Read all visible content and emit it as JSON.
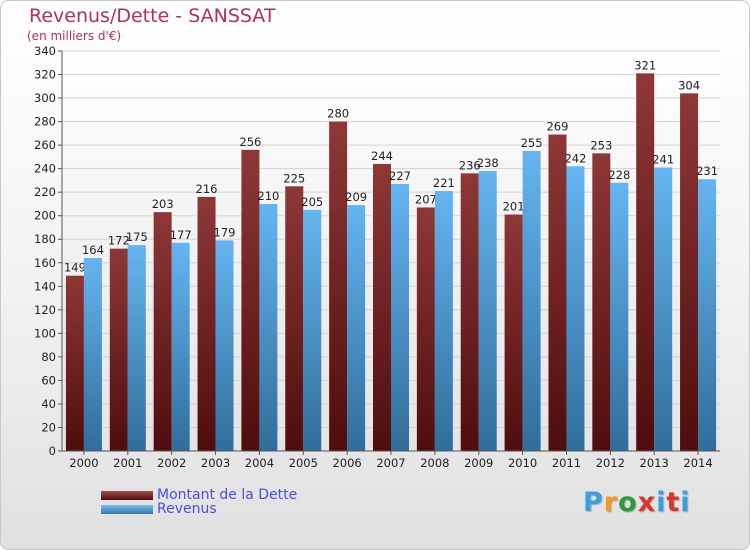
{
  "header": {
    "title": "Revenus/Dette - SANSSAT",
    "subtitle": "(en milliers d'€)"
  },
  "legend": {
    "position": "bottom-left",
    "items": [
      {
        "label": "Montant de la Dette",
        "color": "#7a1414"
      },
      {
        "label": "Revenus",
        "color": "#4aa8ee"
      }
    ]
  },
  "logo": {
    "text": "Proxiti",
    "colors": [
      "#3aa0dc",
      "#f29a1c",
      "#2e9a3a",
      "#d9352a",
      "#3aa0dc",
      "#d9352a",
      "#3aa0dc"
    ]
  },
  "chart_data": {
    "type": "bar",
    "title": "Revenus/Dette - SANSSAT",
    "subtitle": "(en milliers d'€)",
    "categories": [
      "2000",
      "2001",
      "2002",
      "2003",
      "2004",
      "2005",
      "2006",
      "2007",
      "2008",
      "2009",
      "2010",
      "2011",
      "2012",
      "2013",
      "2014"
    ],
    "series": [
      {
        "name": "Montant de la Dette",
        "color": "#7a1414",
        "values": [
          149,
          172,
          203,
          216,
          256,
          225,
          280,
          244,
          207,
          236,
          201,
          269,
          253,
          321,
          304
        ]
      },
      {
        "name": "Revenus",
        "color": "#4aa8ee",
        "values": [
          164,
          175,
          177,
          179,
          210,
          205,
          209,
          227,
          221,
          238,
          255,
          242,
          228,
          241,
          231
        ]
      }
    ],
    "ylim": [
      0,
      340
    ],
    "ytick_step": 20,
    "grid": true,
    "legend_position": "bottom-left"
  }
}
